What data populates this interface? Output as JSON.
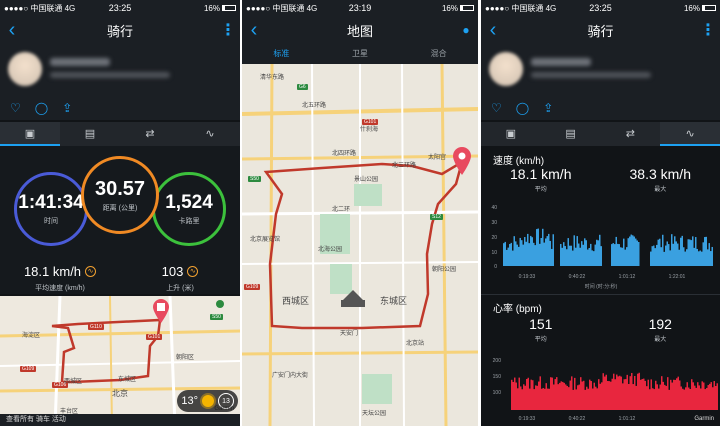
{
  "status": {
    "carrier": "●●●●○ 中国联通 4G",
    "battery": "16%",
    "p1_time": "23:25",
    "p2_time": "23:19",
    "p3_time": "23:25"
  },
  "screen1": {
    "title": "骑行",
    "tabs": [
      "summary",
      "details",
      "laps",
      "charts"
    ],
    "time_value": "1:41:34",
    "time_label": "时间",
    "distance_value": "30.57",
    "distance_label": "距离 (公里)",
    "calories_value": "1,524",
    "calories_label": "卡路里",
    "avg_speed_value": "18.1 km/h",
    "avg_speed_label": "平均速度 (km/h)",
    "ascent_value": "103",
    "ascent_label": "上升 (米)",
    "map_labels": [
      "海淀区",
      "西城区",
      "东城区",
      "北京",
      "朝阳区",
      "丰台区"
    ],
    "weather_temp": "13°",
    "weather_badge": "13",
    "bottom_link": "查看所有 骑车 活动",
    "garmin": "Garmin",
    "colors": {
      "time_ring": "#4a5bd8",
      "distance_ring": "#f08a24",
      "calories_ring": "#3cc13c"
    }
  },
  "screen2": {
    "title": "地图",
    "tabs": [
      "标准",
      "卫星",
      "混合"
    ],
    "active_tab": "标准",
    "labels": [
      "清华东路",
      "北五环路",
      "北四环路",
      "北三环路",
      "北二环",
      "西城区",
      "东城区",
      "天安门",
      "北京站",
      "北海公园",
      "景山公园",
      "什刹海",
      "朝阳公园",
      "北京展览馆",
      "广安门内大街",
      "天坛公园",
      "太阳宫"
    ],
    "roads": [
      "G6",
      "S12",
      "S50",
      "G109",
      "G101"
    ]
  },
  "screen3": {
    "title": "骑行",
    "speed_title": "速度 (km/h)",
    "speed_avg": "18.1 km/h",
    "speed_avg_label": "平均",
    "speed_max": "38.3 km/h",
    "speed_max_label": "最大",
    "speed_y_ticks": [
      "40",
      "30",
      "20",
      "10",
      "0"
    ],
    "time_ticks": [
      "0:19:33",
      "0:40:22",
      "1:01:12",
      "1:22:01"
    ],
    "time_axis_label": "时间 (时:分:秒)",
    "hr_title": "心率 (bpm)",
    "hr_avg": "151",
    "hr_avg_label": "平均",
    "hr_max": "192",
    "hr_max_label": "最大",
    "hr_y_ticks": [
      "200",
      "150",
      "100"
    ],
    "garmin": "Garmin",
    "colors": {
      "speed": "#3aa0e0",
      "hr": "#e8263e"
    }
  }
}
